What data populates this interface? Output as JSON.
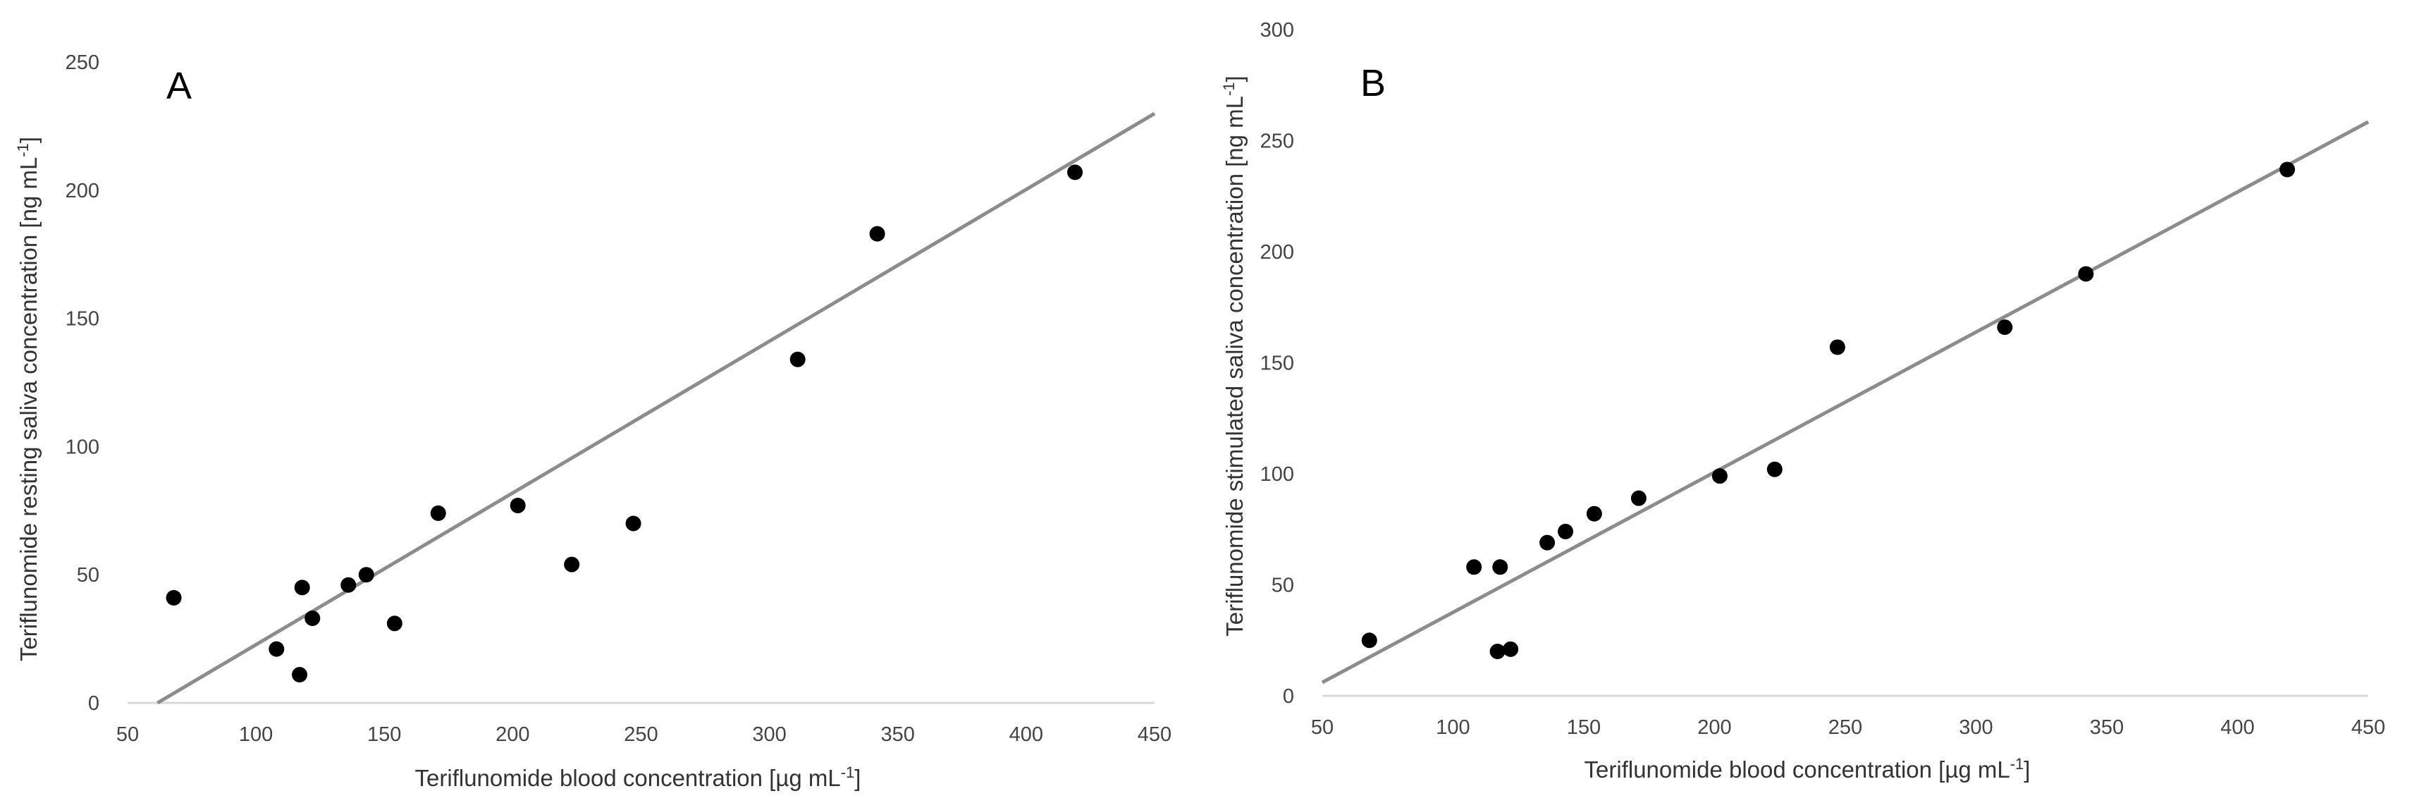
{
  "chart_data": [
    {
      "type": "scatter",
      "panel_label": "A",
      "xlabel": "Teriflunomide blood concentration [µg mL",
      "xlabel_sup": "-1",
      "xlabel_end": "]",
      "ylabel": "Teriflunomide resting saliva concentration [ng mL",
      "ylabel_sup": "-1",
      "ylabel_end": "]",
      "xlim": [
        50,
        450
      ],
      "ylim": [
        0,
        250
      ],
      "xticks": [
        50,
        100,
        150,
        200,
        250,
        300,
        350,
        400,
        450
      ],
      "yticks": [
        0,
        50,
        100,
        150,
        200,
        250
      ],
      "grid": false,
      "x": [
        68,
        108,
        117,
        118,
        122,
        136,
        143,
        154,
        171,
        202,
        223,
        247,
        311,
        342,
        419
      ],
      "y": [
        41,
        21,
        11,
        45,
        33,
        46,
        50,
        31,
        74,
        77,
        54,
        70,
        134,
        183,
        207
      ],
      "trendline": {
        "slope": 0.592,
        "intercept": -36.5
      }
    },
    {
      "type": "scatter",
      "panel_label": "B",
      "xlabel": "Teriflunomide blood concentration [µg mL",
      "xlabel_sup": "-1",
      "xlabel_end": "]",
      "ylabel": "Teriflunomide stimulated saliva concentration [ng mL",
      "ylabel_sup": "-1",
      "ylabel_end": "]",
      "xlim": [
        50,
        450
      ],
      "ylim": [
        0,
        300
      ],
      "xticks": [
        50,
        100,
        150,
        200,
        250,
        300,
        350,
        400,
        450
      ],
      "yticks": [
        0,
        50,
        100,
        150,
        200,
        250,
        300
      ],
      "grid": false,
      "x": [
        68,
        108,
        117,
        118,
        122,
        136,
        143,
        154,
        171,
        202,
        223,
        247,
        311,
        342,
        419
      ],
      "y": [
        25,
        58,
        20,
        58,
        21,
        69,
        74,
        82,
        89,
        99,
        102,
        157,
        166,
        190,
        237
      ],
      "trendline": {
        "slope": 0.631,
        "intercept": -25.5
      }
    }
  ],
  "colors": {
    "axis": "#d9d9d9",
    "trendline": "#8c8c8c",
    "marker": "#000000",
    "tick_text": "#444444",
    "title_text": "#333333"
  }
}
